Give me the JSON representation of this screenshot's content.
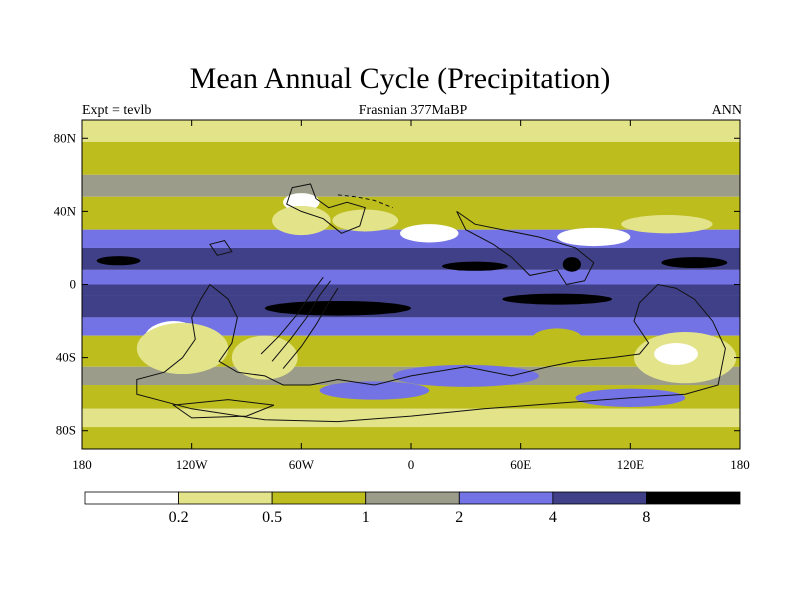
{
  "chart_data": {
    "type": "heatmap",
    "title": "Mean Annual Cycle (Precipitation)",
    "subtitle_left": "Expt = tevlb",
    "subtitle_center": "Frasnian 377MaBP",
    "subtitle_right": "ANN",
    "x_ticks": [
      {
        "value": -180,
        "label": "180"
      },
      {
        "value": -120,
        "label": "120W"
      },
      {
        "value": -60,
        "label": "60W"
      },
      {
        "value": 0,
        "label": "0"
      },
      {
        "value": 60,
        "label": "60E"
      },
      {
        "value": 120,
        "label": "120E"
      },
      {
        "value": 180,
        "label": "180"
      }
    ],
    "y_ticks": [
      {
        "value": 80,
        "label": "80N"
      },
      {
        "value": 40,
        "label": "40N"
      },
      {
        "value": 0,
        "label": "0"
      },
      {
        "value": -40,
        "label": "40S"
      },
      {
        "value": -80,
        "label": "80S"
      }
    ],
    "xlim": [
      -180,
      180
    ],
    "ylim": [
      -90,
      90
    ],
    "colorbar": {
      "levels": [
        "0.2",
        "0.5",
        "1",
        "2",
        "4",
        "8"
      ],
      "colors": [
        "#ffffff",
        "#e3e38a",
        "#bdbd1e",
        "#9c9c8a",
        "#7373e6",
        "#404088",
        "#000000"
      ]
    },
    "zonal_bands": [
      {
        "lat": [
          78,
          90
        ],
        "level_index": 1
      },
      {
        "lat": [
          60,
          78
        ],
        "level_index": 2
      },
      {
        "lat": [
          48,
          60
        ],
        "level_index": 3
      },
      {
        "lat": [
          30,
          48
        ],
        "level_index": 2
      },
      {
        "lat": [
          20,
          30
        ],
        "level_index": 4
      },
      {
        "lat": [
          8,
          20
        ],
        "level_index": 5
      },
      {
        "lat": [
          0,
          8
        ],
        "level_index": 4
      },
      {
        "lat": [
          -6,
          0
        ],
        "level_index": 5
      },
      {
        "lat": [
          -18,
          -6
        ],
        "level_index": 5
      },
      {
        "lat": [
          -28,
          -18
        ],
        "level_index": 4
      },
      {
        "lat": [
          -45,
          -28
        ],
        "level_index": 2
      },
      {
        "lat": [
          -55,
          -45
        ],
        "level_index": 3
      },
      {
        "lat": [
          -68,
          -55
        ],
        "level_index": 2
      },
      {
        "lat": [
          -78,
          -68
        ],
        "level_index": 1
      },
      {
        "lat": [
          -90,
          -78
        ],
        "level_index": 2
      }
    ],
    "patches": [
      {
        "lon": -160,
        "lat": 13,
        "rx": 12,
        "ry": 2.5,
        "level_index": 6
      },
      {
        "lon": 155,
        "lat": 12,
        "rx": 18,
        "ry": 3,
        "level_index": 6
      },
      {
        "lon": 88,
        "lat": 11,
        "rx": 5,
        "ry": 4,
        "level_index": 6
      },
      {
        "lon": 35,
        "lat": 10,
        "rx": 18,
        "ry": 2.5,
        "level_index": 6
      },
      {
        "lon": -40,
        "lat": -13,
        "rx": 40,
        "ry": 4,
        "level_index": 6
      },
      {
        "lon": 80,
        "lat": -8,
        "rx": 30,
        "ry": 3,
        "level_index": 6
      },
      {
        "lon": -60,
        "lat": 45,
        "rx": 10,
        "ry": 5,
        "level_index": 0
      },
      {
        "lon": -60,
        "lat": 35,
        "rx": 16,
        "ry": 8,
        "level_index": 1
      },
      {
        "lon": -25,
        "lat": 35,
        "rx": 18,
        "ry": 6,
        "level_index": 1
      },
      {
        "lon": 10,
        "lat": 28,
        "rx": 16,
        "ry": 5,
        "level_index": 0
      },
      {
        "lon": 100,
        "lat": 26,
        "rx": 20,
        "ry": 5,
        "level_index": 0
      },
      {
        "lon": 140,
        "lat": 33,
        "rx": 25,
        "ry": 5,
        "level_index": 1
      },
      {
        "lon": -130,
        "lat": -30,
        "rx": 16,
        "ry": 10,
        "level_index": 0
      },
      {
        "lon": -125,
        "lat": -35,
        "rx": 25,
        "ry": 14,
        "level_index": 1
      },
      {
        "lon": -80,
        "lat": -40,
        "rx": 18,
        "ry": 12,
        "level_index": 1
      },
      {
        "lon": 80,
        "lat": -30,
        "rx": 14,
        "ry": 6,
        "level_index": 2
      },
      {
        "lon": 150,
        "lat": -40,
        "rx": 28,
        "ry": 14,
        "level_index": 1
      },
      {
        "lon": 145,
        "lat": -38,
        "rx": 12,
        "ry": 6,
        "level_index": 0
      },
      {
        "lon": 30,
        "lat": -50,
        "rx": 40,
        "ry": 6,
        "level_index": 4
      },
      {
        "lon": -20,
        "lat": -58,
        "rx": 30,
        "ry": 5,
        "level_index": 4
      },
      {
        "lon": 120,
        "lat": -62,
        "rx": 30,
        "ry": 5,
        "level_index": 4
      }
    ],
    "coastlines": [
      {
        "name": "north-continent",
        "closed": true,
        "points": [
          [
            -65,
            53
          ],
          [
            -55,
            55
          ],
          [
            -52,
            47
          ],
          [
            -45,
            42
          ],
          [
            -35,
            45
          ],
          [
            -25,
            42
          ],
          [
            -28,
            32
          ],
          [
            -38,
            28
          ],
          [
            -48,
            36
          ],
          [
            -60,
            40
          ],
          [
            -68,
            44
          ]
        ]
      },
      {
        "name": "east-landmass",
        "closed": true,
        "points": [
          [
            25,
            40
          ],
          [
            35,
            33
          ],
          [
            50,
            30
          ],
          [
            70,
            26
          ],
          [
            90,
            20
          ],
          [
            100,
            12
          ],
          [
            95,
            2
          ],
          [
            85,
            0
          ],
          [
            80,
            8
          ],
          [
            65,
            5
          ],
          [
            55,
            15
          ],
          [
            45,
            22
          ],
          [
            30,
            30
          ]
        ]
      },
      {
        "name": "southern-continent",
        "closed": true,
        "points": [
          [
            -110,
            0
          ],
          [
            -100,
            -8
          ],
          [
            -95,
            -18
          ],
          [
            -98,
            -32
          ],
          [
            -105,
            -42
          ],
          [
            -95,
            -48
          ],
          [
            -80,
            -50
          ],
          [
            -70,
            -55
          ],
          [
            -55,
            -55
          ],
          [
            -40,
            -52
          ],
          [
            -20,
            -55
          ],
          [
            0,
            -50
          ],
          [
            30,
            -45
          ],
          [
            55,
            -50
          ],
          [
            75,
            -45
          ],
          [
            90,
            -42
          ],
          [
            110,
            -40
          ],
          [
            125,
            -38
          ],
          [
            130,
            -32
          ],
          [
            122,
            -20
          ],
          [
            125,
            -10
          ],
          [
            135,
            0
          ],
          [
            145,
            -2
          ],
          [
            155,
            -8
          ],
          [
            165,
            -20
          ],
          [
            172,
            -35
          ],
          [
            168,
            -55
          ],
          [
            150,
            -60
          ],
          [
            120,
            -62
          ],
          [
            80,
            -65
          ],
          [
            40,
            -68
          ],
          [
            0,
            -72
          ],
          [
            -40,
            -75
          ],
          [
            -80,
            -74
          ],
          [
            -120,
            -68
          ],
          [
            -150,
            -60
          ],
          [
            -150,
            -52
          ],
          [
            -135,
            -48
          ],
          [
            -125,
            -40
          ],
          [
            -118,
            -30
          ],
          [
            -120,
            -18
          ],
          [
            -115,
            -8
          ]
        ]
      },
      {
        "name": "ridge-1",
        "closed": false,
        "points": [
          [
            -82,
            -38
          ],
          [
            -72,
            -28
          ],
          [
            -62,
            -16
          ],
          [
            -54,
            -4
          ],
          [
            -48,
            4
          ]
        ]
      },
      {
        "name": "ridge-2",
        "closed": false,
        "points": [
          [
            -76,
            -42
          ],
          [
            -66,
            -30
          ],
          [
            -57,
            -18
          ],
          [
            -50,
            -6
          ],
          [
            -44,
            2
          ]
        ]
      },
      {
        "name": "ridge-3",
        "closed": false,
        "points": [
          [
            -70,
            -46
          ],
          [
            -60,
            -34
          ],
          [
            -52,
            -22
          ],
          [
            -45,
            -10
          ],
          [
            -40,
            -2
          ]
        ]
      },
      {
        "name": "south-island",
        "closed": true,
        "points": [
          [
            -130,
            -66
          ],
          [
            -100,
            -63
          ],
          [
            -75,
            -66
          ],
          [
            -90,
            -72
          ],
          [
            -120,
            -73
          ]
        ]
      },
      {
        "name": "north-dashes",
        "closed": false,
        "points": [
          [
            -40,
            49
          ],
          [
            -30,
            48
          ],
          [
            -20,
            46
          ],
          [
            -10,
            42
          ]
        ]
      },
      {
        "name": "small-island",
        "closed": true,
        "points": [
          [
            -110,
            22
          ],
          [
            -102,
            24
          ],
          [
            -98,
            18
          ],
          [
            -106,
            16
          ]
        ]
      }
    ]
  }
}
